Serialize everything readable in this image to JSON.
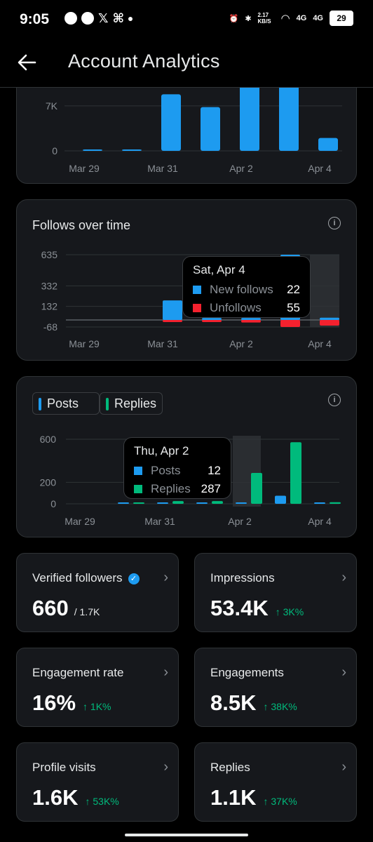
{
  "status_bar": {
    "time": "9:05",
    "network_speed": "2.17 KB/S",
    "signal_1": "4G",
    "signal_2": "4G",
    "battery": "29"
  },
  "header": {
    "title": "Account Analytics"
  },
  "colors": {
    "blue": "#1d9bf0",
    "red": "#f4212e",
    "green": "#00ba7c",
    "card": "#16181c",
    "border": "#2f3336"
  },
  "top_chart": {
    "chart_data": {
      "type": "bar",
      "categories": [
        "Mar 29",
        "Mar 30",
        "Mar 31",
        "Apr 1",
        "Apr 2",
        "Apr 3",
        "Apr 4"
      ],
      "values": [
        60,
        60,
        8800,
        6800,
        10900,
        12800,
        2000
      ],
      "yticks": [
        "7K",
        "0"
      ],
      "xticks": [
        "Mar 29",
        "Mar 31",
        "Apr 2",
        "Apr 4"
      ],
      "grid": true
    }
  },
  "follows_chart": {
    "title": "Follows over time",
    "tooltip": {
      "date": "Sat, Apr 4",
      "new_follows_label": "New follows",
      "new_follows_value": "22",
      "unfollows_label": "Unfollows",
      "unfollows_value": "55"
    },
    "chart_data": {
      "type": "bar",
      "categories": [
        "Mar 29",
        "Mar 30",
        "Mar 31",
        "Apr 1",
        "Apr 2",
        "Apr 3",
        "Apr 4"
      ],
      "series": [
        {
          "name": "New follows",
          "values": [
            0,
            0,
            190,
            20,
            20,
            635,
            22
          ]
        },
        {
          "name": "Unfollows",
          "values": [
            0,
            0,
            -8,
            -20,
            -25,
            -68,
            -55
          ]
        }
      ],
      "yticks": [
        "635",
        "332",
        "132",
        "-68"
      ],
      "xticks": [
        "Mar 29",
        "Mar 31",
        "Apr 2",
        "Apr 4"
      ],
      "highlighted": "Apr 4"
    }
  },
  "posts_chart": {
    "chips": [
      {
        "label": "Posts"
      },
      {
        "label": "Replies"
      }
    ],
    "tooltip": {
      "date": "Thu, Apr 2",
      "posts_label": "Posts",
      "posts_value": "12",
      "replies_label": "Replies",
      "replies_value": "287"
    },
    "chart_data": {
      "type": "bar",
      "categories": [
        "Mar 29",
        "Mar 30",
        "Mar 31",
        "Apr 1",
        "Apr 2",
        "Apr 3",
        "Apr 4"
      ],
      "series": [
        {
          "name": "Posts",
          "values": [
            0,
            5,
            10,
            10,
            12,
            75,
            5
          ]
        },
        {
          "name": "Replies",
          "values": [
            0,
            5,
            25,
            25,
            287,
            572,
            15
          ]
        }
      ],
      "yticks": [
        "600",
        "200",
        "0"
      ],
      "xticks": [
        "Mar 29",
        "Mar 31",
        "Apr 2",
        "Apr 4"
      ],
      "highlighted": "Apr 2"
    }
  },
  "metrics": [
    {
      "label": "Verified followers",
      "value": "660",
      "sub": "/ 1.7K",
      "delta": ""
    },
    {
      "label": "Impressions",
      "value": "53.4K",
      "sub": "",
      "delta": "↑ 3K%"
    },
    {
      "label": "Engagement rate",
      "value": "16%",
      "sub": "",
      "delta": "↑ 1K%"
    },
    {
      "label": "Engagements",
      "value": "8.5K",
      "sub": "",
      "delta": "↑ 38K%"
    },
    {
      "label": "Profile visits",
      "value": "1.6K",
      "sub": "",
      "delta": "↑ 53K%"
    },
    {
      "label": "Replies",
      "value": "1.1K",
      "sub": "",
      "delta": "↑ 37K%"
    }
  ]
}
